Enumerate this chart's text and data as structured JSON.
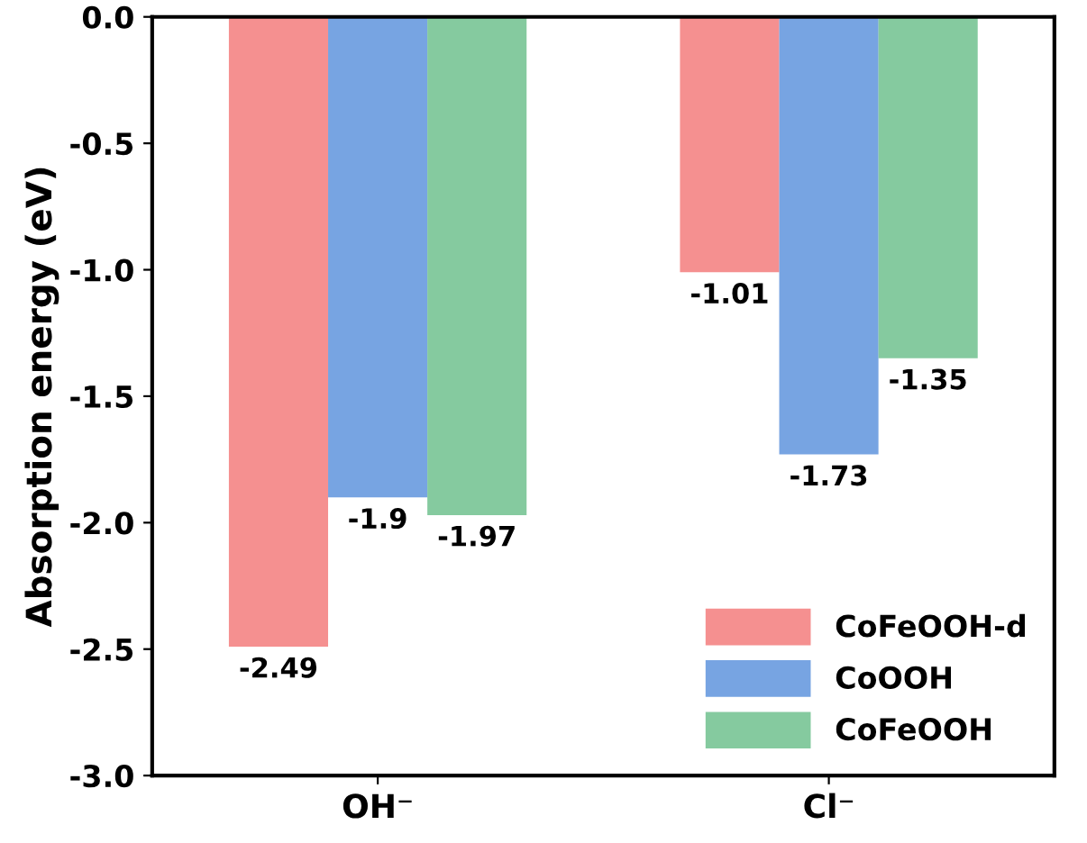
{
  "chart_data": {
    "type": "bar",
    "ylabel": "Absorption energy (eV)",
    "categories": [
      "OH⁻",
      "Cl⁻"
    ],
    "series": [
      {
        "name": "CoFeOOH-d",
        "color": "#f26b6b",
        "values": [
          -2.49,
          -1.01
        ]
      },
      {
        "name": "CoOOH",
        "color": "#4a86d8",
        "values": [
          -1.9,
          -1.73
        ]
      },
      {
        "name": "CoFeOOH",
        "color": "#5cb87f",
        "values": [
          -1.97,
          -1.35
        ]
      }
    ],
    "ylim": [
      -3.0,
      0.0
    ],
    "yticks": [
      {
        "value": -3.0,
        "label": "-3.0"
      },
      {
        "value": -2.5,
        "label": "-2.5"
      },
      {
        "value": -2.0,
        "label": "-2.0"
      },
      {
        "value": -1.5,
        "label": "-1.5"
      },
      {
        "value": -1.0,
        "label": "-1.0"
      },
      {
        "value": -0.5,
        "label": "-0.5"
      },
      {
        "value": 0.0,
        "label": "0.0"
      }
    ],
    "data_labels": true,
    "legend": "bottom right",
    "grid": false
  }
}
